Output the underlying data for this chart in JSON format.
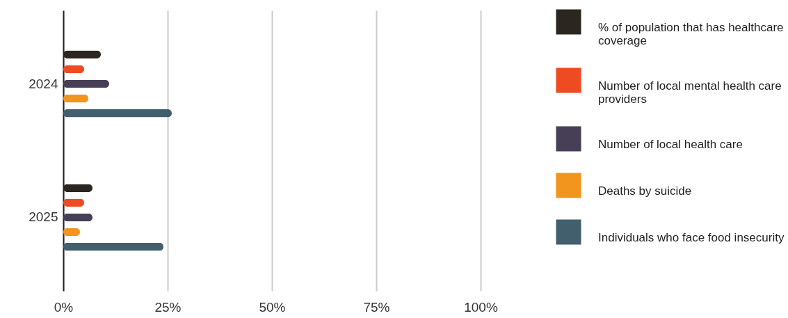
{
  "chart_data": {
    "type": "bar",
    "orientation": "horizontal",
    "categories": [
      "2024",
      "2025"
    ],
    "series": [
      {
        "name": "% of population that has healthcare coverage",
        "color": "#2b2620",
        "values": [
          9,
          7
        ]
      },
      {
        "name": "Number of local mental health care providers",
        "color": "#ef4b23",
        "values": [
          5,
          5
        ]
      },
      {
        "name": "Number of local health care",
        "color": "#473f55",
        "values": [
          11,
          7
        ]
      },
      {
        "name": "Deaths by suicide",
        "color": "#f2951f",
        "values": [
          6,
          4
        ]
      },
      {
        "name": "Individuals who face food insecurity",
        "color": "#415f6c",
        "values": [
          26,
          24
        ]
      }
    ],
    "xlim": [
      0,
      100
    ],
    "xticks": [
      {
        "value": 0,
        "label": "0%"
      },
      {
        "value": 25,
        "label": "25%"
      },
      {
        "value": 50,
        "label": "50%"
      },
      {
        "value": 75,
        "label": "75%"
      },
      {
        "value": 100,
        "label": "100%"
      }
    ],
    "grid": "x",
    "legend": "top right"
  }
}
